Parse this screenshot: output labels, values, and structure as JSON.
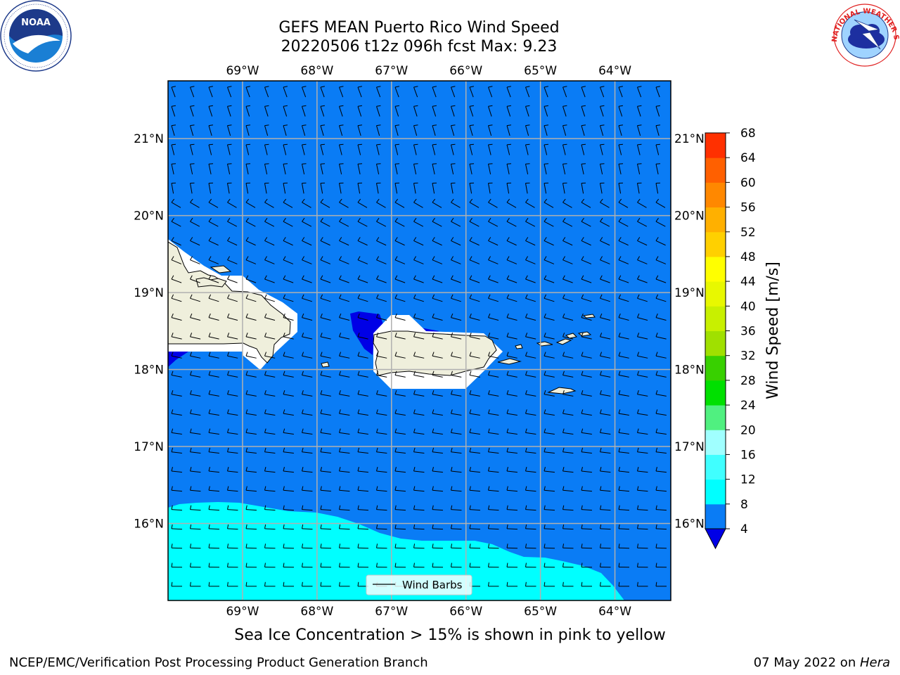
{
  "title": {
    "line1": "GEFS MEAN Puerto Rico Wind Speed",
    "line2": "20220506 t12z 096h fcst   Max: 9.23"
  },
  "map": {
    "lon_ticks": [
      "69°W",
      "68°W",
      "67°W",
      "66°W",
      "65°W",
      "64°W"
    ],
    "lon_values": [
      -69,
      -68,
      -67,
      -66,
      -65,
      -64
    ],
    "lat_ticks": [
      "16°N",
      "17°N",
      "18°N",
      "19°N",
      "20°N",
      "21°N"
    ],
    "lat_values": [
      16,
      17,
      18,
      19,
      20,
      21
    ],
    "lon_range": [
      -70,
      -63.25
    ],
    "lat_range": [
      15,
      21.75
    ],
    "ocean_color": "#0a7cf5",
    "low_wind_color": "#0000e6",
    "mid_wind_color": "#00ffff",
    "land_color": "#efefdc",
    "grid_color": "#b0b0b0",
    "legend_label": "Wind Barbs"
  },
  "colorbar": {
    "label": "Wind Speed [m/s]",
    "ticks": [
      "4",
      "8",
      "12",
      "16",
      "20",
      "24",
      "28",
      "32",
      "36",
      "40",
      "44",
      "48",
      "52",
      "56",
      "60",
      "64",
      "68"
    ],
    "colors": [
      "#0a7cf5",
      "#00ffff",
      "#40ffff",
      "#a0ffff",
      "#50f080",
      "#00e000",
      "#38d000",
      "#a0e000",
      "#c8f000",
      "#e8f800",
      "#ffff00",
      "#ffd000",
      "#ffb000",
      "#ff8800",
      "#ff6000",
      "#ff3000"
    ],
    "under_color": "#0000e6"
  },
  "subtitle": "Sea Ice Concentration > 15% is shown in pink to yellow",
  "footer": {
    "left": "NCEP/EMC/Verification Post Processing Product Generation Branch",
    "date": "07 May 2022 on ",
    "machine": "Hera"
  },
  "logos": {
    "noaa_text": "NOAA",
    "nws_text": "NATIONAL WEATHER SERVICE"
  }
}
